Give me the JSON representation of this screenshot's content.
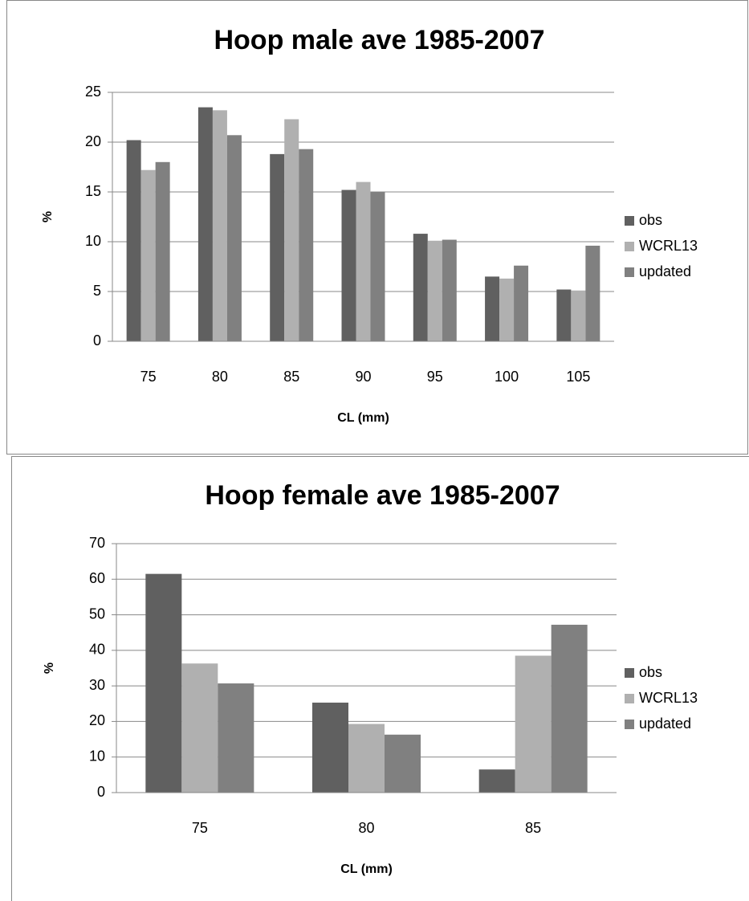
{
  "chart_data": [
    {
      "type": "bar",
      "title": "Hoop male ave 1985-2007",
      "x_label": "CL (mm)",
      "y_label": "%",
      "categories": [
        "75",
        "80",
        "85",
        "90",
        "95",
        "100",
        "105"
      ],
      "series": [
        {
          "name": "obs",
          "color": "#606060",
          "values": [
            20.2,
            23.5,
            18.8,
            15.2,
            10.8,
            6.5,
            5.2
          ]
        },
        {
          "name": "WCRL13",
          "color": "#b0b0b0",
          "values": [
            17.2,
            23.2,
            22.3,
            16.0,
            10.1,
            6.3,
            5.1
          ]
        },
        {
          "name": "updated",
          "color": "#808080",
          "values": [
            18.0,
            20.7,
            19.3,
            15.0,
            10.2,
            7.6,
            9.6
          ]
        }
      ],
      "ylim": [
        0,
        25
      ],
      "yticks": [
        0,
        5,
        10,
        15,
        20,
        25
      ],
      "grid": true,
      "legend": "right"
    },
    {
      "type": "bar",
      "title": "Hoop female ave 1985-2007",
      "x_label": "CL (mm)",
      "y_label": "%",
      "categories": [
        "75",
        "80",
        "85"
      ],
      "series": [
        {
          "name": "obs",
          "color": "#606060",
          "values": [
            61.5,
            25.3,
            6.5
          ]
        },
        {
          "name": "WCRL13",
          "color": "#b0b0b0",
          "values": [
            36.3,
            19.3,
            38.5
          ]
        },
        {
          "name": "updated",
          "color": "#808080",
          "values": [
            30.7,
            16.3,
            47.2
          ]
        }
      ],
      "ylim": [
        0,
        70
      ],
      "yticks": [
        0,
        10,
        20,
        30,
        40,
        50,
        60,
        70
      ],
      "grid": true,
      "legend": "right"
    }
  ]
}
